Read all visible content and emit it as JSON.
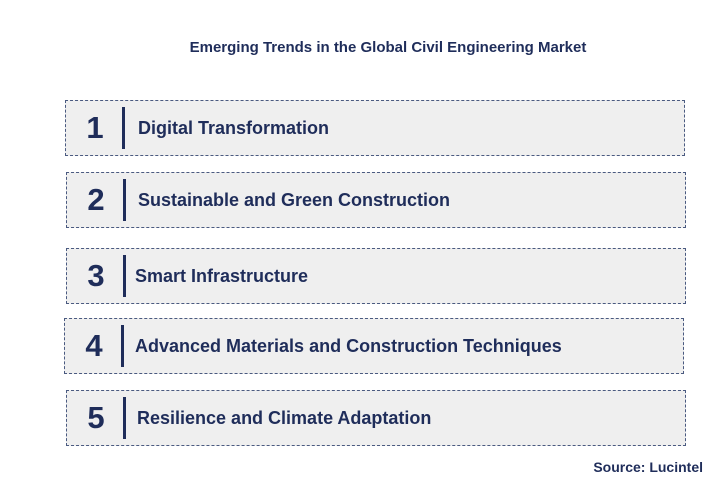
{
  "title": "Emerging Trends in the Global Civil Engineering Market",
  "trends": [
    {
      "number": "1",
      "label": "Digital Transformation"
    },
    {
      "number": "2",
      "label": "Sustainable and Green Construction"
    },
    {
      "number": "3",
      "label": "Smart Infrastructure"
    },
    {
      "number": "4",
      "label": "Advanced Materials and Construction Techniques"
    },
    {
      "number": "5",
      "label": "Resilience and Climate Adaptation"
    }
  ],
  "source": "Source: Lucintel",
  "colors": {
    "text": "#1f2d5a",
    "box_fill": "#efefef",
    "box_border": "#4a5a80"
  }
}
